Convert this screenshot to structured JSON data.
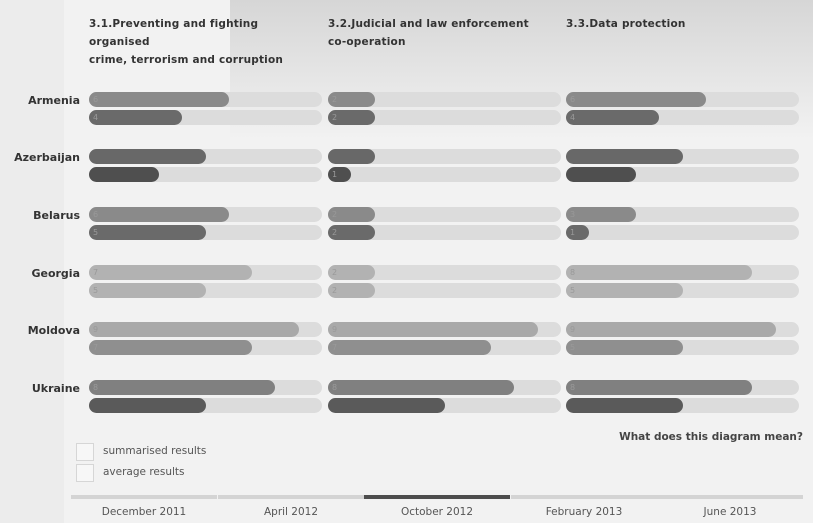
{
  "columns": [
    {
      "title_line1": "3.1.Preventing and fighting organised",
      "title_line2": "crime, terrorism and corruption"
    },
    {
      "title_line1": "3.2.Judicial and law enforcement",
      "title_line2": "co-operation"
    },
    {
      "title_line1": "3.3.Data protection",
      "title_line2": ""
    }
  ],
  "legend": {
    "summarised": "summarised results",
    "average": "average results"
  },
  "help_link": "What does this diagram mean?",
  "timeline": {
    "labels": [
      "December 2011",
      "April 2012",
      "October 2012",
      "February 2013",
      "June 2013"
    ],
    "active_index": 2
  },
  "colors": {
    "track": "#dcdcdc",
    "timeline_active": "#4d4d4d"
  },
  "chart_data": {
    "type": "bar",
    "orientation": "horizontal",
    "xlim": [
      0,
      10
    ],
    "categories": [
      "Armenia",
      "Azerbaijan",
      "Belarus",
      "Georgia",
      "Moldova",
      "Ukraine"
    ],
    "panels": [
      {
        "title": "3.1.Preventing and fighting organised crime, terrorism and corruption",
        "series": [
          {
            "values": [
              6,
              5,
              6,
              7,
              9,
              8
            ],
            "labels": [
              "6",
              "",
              "6",
              "7",
              "9",
              "8"
            ],
            "colors": [
              "#8a8a8a",
              "#686868",
              "#8a8a8a",
              "#b2b2b2",
              "#a9a9a9",
              "#808080"
            ]
          },
          {
            "values": [
              4,
              3,
              5,
              5,
              7,
              5
            ],
            "labels": [
              "4",
              "",
              "5",
              "5",
              "7",
              ""
            ],
            "colors": [
              "#6a6a6a",
              "#4f4f4f",
              "#6a6a6a",
              "#b2b2b2",
              "#8f8f8f",
              "#5a5a5a"
            ]
          }
        ]
      },
      {
        "title": "3.2.Judicial and law enforcement co-operation",
        "series": [
          {
            "values": [
              2,
              2,
              2,
              2,
              9,
              8
            ],
            "labels": [
              "2",
              "",
              "2",
              "2",
              "9",
              "8"
            ],
            "colors": [
              "#8a8a8a",
              "#686868",
              "#8a8a8a",
              "#b2b2b2",
              "#a9a9a9",
              "#808080"
            ]
          },
          {
            "values": [
              2,
              1,
              2,
              2,
              7,
              5
            ],
            "labels": [
              "2",
              "1",
              "2",
              "2",
              "7",
              ""
            ],
            "colors": [
              "#6a6a6a",
              "#4f4f4f",
              "#6a6a6a",
              "#b2b2b2",
              "#8f8f8f",
              "#5a5a5a"
            ]
          }
        ]
      },
      {
        "title": "3.3.Data protection",
        "series": [
          {
            "values": [
              6,
              5,
              3,
              8,
              9,
              8
            ],
            "labels": [
              "6",
              "",
              "3",
              "8",
              "9",
              "8"
            ],
            "colors": [
              "#8a8a8a",
              "#686868",
              "#8a8a8a",
              "#b2b2b2",
              "#a9a9a9",
              "#808080"
            ]
          },
          {
            "values": [
              4,
              3,
              1,
              5,
              5,
              5
            ],
            "labels": [
              "4",
              "",
              "1",
              "5",
              "5",
              ""
            ],
            "colors": [
              "#6a6a6a",
              "#4f4f4f",
              "#6a6a6a",
              "#b2b2b2",
              "#8f8f8f",
              "#5a5a5a"
            ]
          }
        ]
      }
    ]
  }
}
